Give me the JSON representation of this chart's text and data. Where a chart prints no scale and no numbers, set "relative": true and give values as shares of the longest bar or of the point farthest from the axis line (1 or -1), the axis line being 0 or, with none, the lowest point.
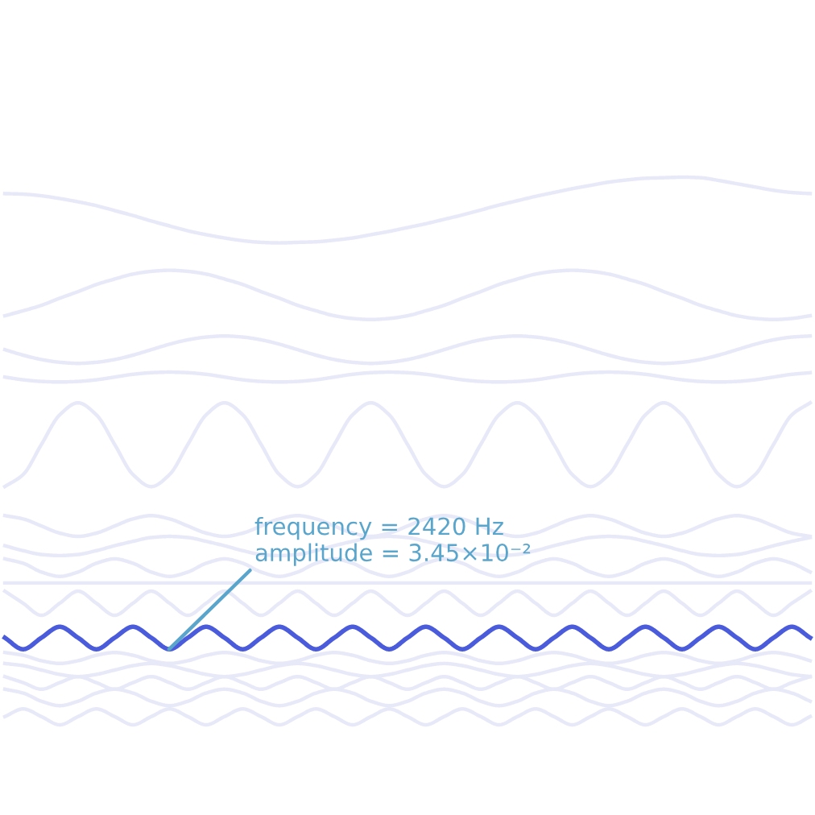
{
  "chart_data": {
    "type": "line",
    "relative": true,
    "legend": false,
    "marker": "none",
    "line_style": "solid",
    "categories": [
      null,
      null,
      null,
      null,
      null,
      null,
      null,
      null,
      null,
      null,
      null,
      null,
      null,
      null,
      null,
      null,
      null,
      null,
      null,
      null,
      null,
      null,
      null,
      null,
      null,
      null,
      null,
      null,
      null,
      null,
      null,
      null,
      null,
      null,
      null,
      null,
      null,
      null,
      null,
      null,
      null,
      null,
      null,
      null,
      null
    ],
    "series": [
      {
        "color": "#e8e9f8",
        "values": [
          0.97,
          0.969,
          0.966,
          0.961,
          0.955,
          0.948,
          0.939,
          0.93,
          0.92,
          0.911,
          0.902,
          0.895,
          0.889,
          0.884,
          0.881,
          0.88,
          0.881,
          0.882,
          0.885,
          0.889,
          0.895,
          0.901,
          0.908,
          0.915,
          0.923,
          0.931,
          0.94,
          0.949,
          0.957,
          0.965,
          0.972,
          0.979,
          0.985,
          0.991,
          0.995,
          0.998,
          0.999,
          1.0,
          0.999,
          0.994,
          0.988,
          0.982,
          0.976,
          0.972,
          0.97
        ]
      },
      {
        "color": "#e8e9f8",
        "values": [
          0.747,
          0.756,
          0.766,
          0.779,
          0.791,
          0.804,
          0.814,
          0.823,
          0.828,
          0.83,
          0.828,
          0.823,
          0.814,
          0.804,
          0.791,
          0.779,
          0.766,
          0.756,
          0.747,
          0.742,
          0.74,
          0.742,
          0.747,
          0.756,
          0.766,
          0.779,
          0.791,
          0.804,
          0.814,
          0.823,
          0.828,
          0.83,
          0.828,
          0.823,
          0.814,
          0.804,
          0.791,
          0.779,
          0.766,
          0.756,
          0.747,
          0.742,
          0.74,
          0.742,
          0.747
        ]
      },
      {
        "color": "#e8e9f8",
        "values": [
          0.685,
          0.675,
          0.667,
          0.662,
          0.66,
          0.662,
          0.667,
          0.675,
          0.685,
          0.695,
          0.703,
          0.708,
          0.71,
          0.708,
          0.703,
          0.695,
          0.685,
          0.675,
          0.667,
          0.662,
          0.66,
          0.662,
          0.667,
          0.675,
          0.685,
          0.695,
          0.703,
          0.708,
          0.71,
          0.708,
          0.703,
          0.695,
          0.685,
          0.675,
          0.667,
          0.662,
          0.66,
          0.662,
          0.667,
          0.675,
          0.685,
          0.695,
          0.703,
          0.708,
          0.71
        ]
      },
      {
        "color": "#e8e9f8",
        "values": [
          0.635,
          0.63,
          0.627,
          0.626,
          0.627,
          0.63,
          0.635,
          0.64,
          0.643,
          0.644,
          0.643,
          0.64,
          0.635,
          0.63,
          0.627,
          0.626,
          0.627,
          0.63,
          0.635,
          0.64,
          0.643,
          0.644,
          0.643,
          0.64,
          0.635,
          0.63,
          0.627,
          0.626,
          0.627,
          0.63,
          0.635,
          0.64,
          0.643,
          0.644,
          0.643,
          0.64,
          0.635,
          0.63,
          0.627,
          0.626,
          0.627,
          0.63,
          0.635,
          0.64,
          0.643
        ]
      },
      {
        "color": "#e8e9f8",
        "values": [
          0.435,
          0.457,
          0.512,
          0.566,
          0.588,
          0.566,
          0.512,
          0.457,
          0.435,
          0.457,
          0.512,
          0.566,
          0.588,
          0.566,
          0.512,
          0.457,
          0.435,
          0.457,
          0.512,
          0.566,
          0.588,
          0.566,
          0.512,
          0.457,
          0.435,
          0.457,
          0.512,
          0.566,
          0.588,
          0.566,
          0.512,
          0.457,
          0.435,
          0.457,
          0.512,
          0.566,
          0.588,
          0.566,
          0.512,
          0.457,
          0.435,
          0.457,
          0.512,
          0.566,
          0.588
        ]
      },
      {
        "color": "#e8e9f8",
        "values": [
          0.382,
          0.376,
          0.363,
          0.35,
          0.344,
          0.35,
          0.363,
          0.376,
          0.382,
          0.376,
          0.363,
          0.35,
          0.344,
          0.35,
          0.363,
          0.376,
          0.382,
          0.376,
          0.363,
          0.35,
          0.344,
          0.35,
          0.363,
          0.376,
          0.382,
          0.376,
          0.363,
          0.35,
          0.344,
          0.35,
          0.363,
          0.376,
          0.382,
          0.376,
          0.363,
          0.35,
          0.344,
          0.35,
          0.363,
          0.376,
          0.382,
          0.376,
          0.363,
          0.35,
          0.344
        ]
      },
      {
        "color": "#e8e9f8",
        "values": [
          0.327,
          0.318,
          0.311,
          0.309,
          0.311,
          0.318,
          0.327,
          0.335,
          0.342,
          0.344,
          0.342,
          0.335,
          0.327,
          0.318,
          0.311,
          0.309,
          0.311,
          0.318,
          0.327,
          0.335,
          0.342,
          0.344,
          0.342,
          0.335,
          0.327,
          0.318,
          0.311,
          0.309,
          0.311,
          0.318,
          0.327,
          0.335,
          0.342,
          0.344,
          0.342,
          0.335,
          0.327,
          0.318,
          0.311,
          0.309,
          0.311,
          0.318,
          0.327,
          0.335,
          0.342
        ]
      },
      {
        "color": "#e8e9f8",
        "values": [
          0.303,
          0.295,
          0.279,
          0.271,
          0.279,
          0.295,
          0.303,
          0.295,
          0.279,
          0.271,
          0.279,
          0.295,
          0.303,
          0.295,
          0.279,
          0.271,
          0.279,
          0.295,
          0.303,
          0.295,
          0.279,
          0.271,
          0.279,
          0.295,
          0.303,
          0.295,
          0.279,
          0.271,
          0.279,
          0.295,
          0.303,
          0.295,
          0.279,
          0.271,
          0.279,
          0.295,
          0.303,
          0.295,
          0.279,
          0.271,
          0.279,
          0.295,
          0.303,
          0.295,
          0.279
        ]
      },
      {
        "color": "#e8e9f8",
        "values": [
          0.259,
          0.259,
          0.259,
          0.259,
          0.259,
          0.259,
          0.259,
          0.259,
          0.259,
          0.259,
          0.259,
          0.259,
          0.259,
          0.259,
          0.259,
          0.259,
          0.259,
          0.259,
          0.259,
          0.259,
          0.259,
          0.259,
          0.259,
          0.259,
          0.259,
          0.259,
          0.259,
          0.259,
          0.259,
          0.259,
          0.259,
          0.259,
          0.259,
          0.259,
          0.259,
          0.259,
          0.259,
          0.259,
          0.259,
          0.259,
          0.259,
          0.259,
          0.259,
          0.259,
          0.259
        ]
      },
      {
        "color": "#e8e9f8",
        "values": [
          0.244,
          0.222,
          0.2,
          0.222,
          0.244,
          0.222,
          0.2,
          0.222,
          0.244,
          0.222,
          0.2,
          0.222,
          0.244,
          0.222,
          0.2,
          0.222,
          0.244,
          0.222,
          0.2,
          0.222,
          0.244,
          0.222,
          0.2,
          0.222,
          0.244,
          0.222,
          0.2,
          0.222,
          0.244,
          0.222,
          0.2,
          0.222,
          0.244,
          0.222,
          0.2,
          0.222,
          0.244,
          0.222,
          0.2,
          0.222,
          0.244,
          0.222,
          0.2,
          0.222,
          0.244
        ]
      },
      {
        "color": "#e8e9f8",
        "values": [
          0.132,
          0.127,
          0.117,
          0.112,
          0.117,
          0.127,
          0.132,
          0.127,
          0.117,
          0.112,
          0.117,
          0.127,
          0.132,
          0.127,
          0.117,
          0.112,
          0.117,
          0.127,
          0.132,
          0.127,
          0.117,
          0.112,
          0.117,
          0.127,
          0.132,
          0.127,
          0.117,
          0.112,
          0.117,
          0.127,
          0.132,
          0.127,
          0.117,
          0.112,
          0.117,
          0.127,
          0.132,
          0.127,
          0.117,
          0.112,
          0.117,
          0.127,
          0.132,
          0.127,
          0.117
        ]
      },
      {
        "color": "#e8e9f8",
        "values": [
          0.112,
          0.108,
          0.1,
          0.092,
          0.088,
          0.092,
          0.1,
          0.108,
          0.112,
          0.108,
          0.1,
          0.092,
          0.088,
          0.092,
          0.1,
          0.108,
          0.112,
          0.108,
          0.1,
          0.092,
          0.088,
          0.092,
          0.1,
          0.108,
          0.112,
          0.108,
          0.1,
          0.092,
          0.088,
          0.092,
          0.1,
          0.108,
          0.112,
          0.108,
          0.1,
          0.092,
          0.088,
          0.092,
          0.1,
          0.108,
          0.112,
          0.108,
          0.1,
          0.092,
          0.088
        ]
      },
      {
        "color": "#e8e9f8",
        "values": [
          0.088,
          0.077,
          0.065,
          0.077,
          0.088,
          0.077,
          0.065,
          0.077,
          0.088,
          0.077,
          0.065,
          0.077,
          0.088,
          0.077,
          0.065,
          0.077,
          0.088,
          0.077,
          0.065,
          0.077,
          0.088,
          0.077,
          0.065,
          0.077,
          0.088,
          0.077,
          0.065,
          0.077,
          0.088,
          0.077,
          0.065,
          0.077,
          0.088,
          0.077,
          0.065,
          0.077,
          0.088,
          0.077,
          0.065,
          0.077,
          0.088,
          0.077,
          0.065,
          0.077,
          0.088
        ]
      },
      {
        "color": "#e8e9f8",
        "values": [
          0.065,
          0.058,
          0.043,
          0.035,
          0.043,
          0.058,
          0.065,
          0.058,
          0.043,
          0.035,
          0.043,
          0.058,
          0.065,
          0.058,
          0.043,
          0.035,
          0.043,
          0.058,
          0.065,
          0.058,
          0.043,
          0.035,
          0.043,
          0.058,
          0.065,
          0.058,
          0.043,
          0.035,
          0.043,
          0.058,
          0.065,
          0.058,
          0.043,
          0.035,
          0.043,
          0.058,
          0.065,
          0.058,
          0.043,
          0.035,
          0.043,
          0.058,
          0.065,
          0.058,
          0.043
        ]
      },
      {
        "color": "#e8e9f8",
        "values": [
          0.015,
          0.029,
          0.015,
          0.0,
          0.015,
          0.029,
          0.015,
          0.0,
          0.015,
          0.029,
          0.015,
          0.0,
          0.015,
          0.029,
          0.015,
          0.0,
          0.015,
          0.029,
          0.015,
          0.0,
          0.015,
          0.029,
          0.015,
          0.0,
          0.015,
          0.029,
          0.015,
          0.0,
          0.015,
          0.029,
          0.015,
          0.0,
          0.015,
          0.029,
          0.015,
          0.0,
          0.015,
          0.029,
          0.015,
          0.0,
          0.015,
          0.029,
          0.015,
          0.0,
          0.015
        ]
      },
      {
        "color": "#4a5bdc",
        "values": [
          0.159,
          0.138,
          0.159,
          0.179,
          0.159,
          0.138,
          0.159,
          0.179,
          0.159,
          0.138,
          0.159,
          0.179,
          0.159,
          0.138,
          0.159,
          0.179,
          0.159,
          0.138,
          0.159,
          0.179,
          0.159,
          0.138,
          0.159,
          0.179,
          0.159,
          0.138,
          0.159,
          0.179,
          0.159,
          0.138,
          0.159,
          0.179,
          0.159,
          0.138,
          0.159,
          0.179,
          0.159,
          0.138,
          0.159,
          0.179,
          0.159,
          0.138,
          0.159,
          0.179,
          0.159
        ]
      }
    ],
    "annotations": [
      "frequency = 2420 Hz\namplitude = 3.45×10⁻²"
    ]
  }
}
